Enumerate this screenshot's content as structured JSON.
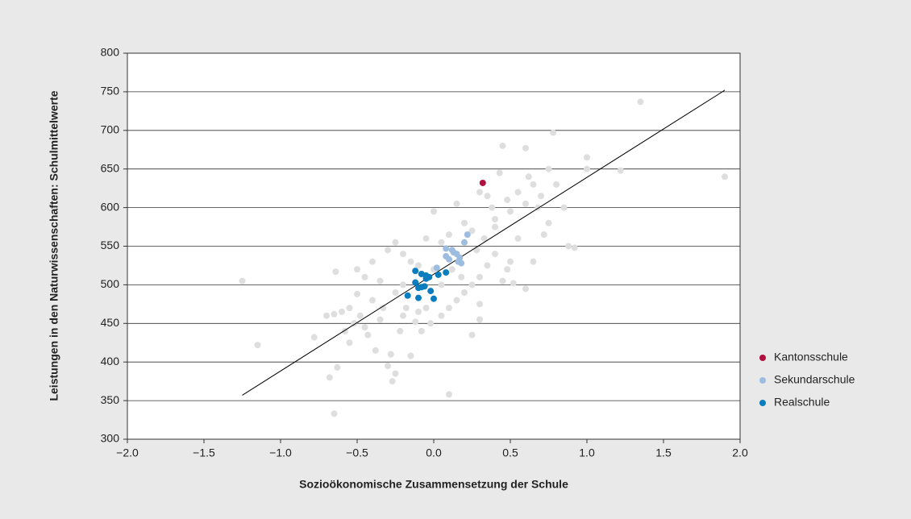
{
  "chart_data": {
    "type": "scatter",
    "xlabel": "Sozioökonomische Zusammensetzung der Schule",
    "ylabel": "Leistungen in den Naturwissenschaften: Schulmittelwerte",
    "xlim": [
      -2,
      2
    ],
    "xticks": [
      {
        "value": -2,
        "label": "−2.0"
      },
      {
        "value": -1.5,
        "label": "−1.5"
      },
      {
        "value": -1,
        "label": "−1.0"
      },
      {
        "value": -0.5,
        "label": "−0.5"
      },
      {
        "value": 0,
        "label": "0.0"
      },
      {
        "value": 0.5,
        "label": "0.5"
      },
      {
        "value": 1,
        "label": "1.0"
      },
      {
        "value": 1.5,
        "label": "1.5"
      },
      {
        "value": 2,
        "label": "2.0"
      }
    ],
    "ylim": [
      300,
      800
    ],
    "yticks": [
      300,
      350,
      400,
      450,
      500,
      550,
      600,
      650,
      700,
      750,
      800
    ],
    "grid": true,
    "legend": "right",
    "trend_line": {
      "color": "#000000",
      "x": [
        -1.25,
        1.9
      ],
      "y": [
        357,
        752
      ]
    },
    "series": [
      {
        "color": "#dedede",
        "x": [
          -1.25,
          -1.15,
          -0.78,
          -0.68,
          -0.65,
          -0.63,
          -0.65,
          -0.6,
          -0.58,
          -0.55,
          -0.52,
          -0.5,
          -0.48,
          -0.45,
          -0.43,
          -0.4,
          -0.38,
          -0.35,
          -0.33,
          -0.3,
          -0.28,
          -0.27,
          -0.25,
          -0.22,
          -0.2,
          -0.18,
          -0.15,
          -0.12,
          -0.1,
          -0.08,
          -0.05,
          -0.02,
          0.05,
          0.1,
          0.25,
          0.3,
          0.3,
          -0.64,
          -0.5,
          -0.35,
          -0.3,
          -0.25,
          -0.2,
          -0.15,
          -0.1,
          -0.05,
          0,
          0.05,
          0.1,
          0.15,
          0.2,
          0.25,
          0.3,
          0.35,
          0.38,
          0.4,
          0.43,
          0.45,
          0.48,
          0.5,
          0.55,
          0.6,
          0.62,
          0.65,
          0.68,
          0.7,
          0.75,
          0.78,
          0.8,
          0.85,
          0.88,
          0.92,
          1.0,
          1.0,
          1.22,
          1.35,
          1.9,
          0.75,
          0.72,
          0.6,
          0.55,
          0.5,
          0.48,
          0.45,
          0.4,
          0.35,
          0.3,
          0.25,
          0.2,
          0.15,
          0.1,
          0.05,
          0.0,
          0.28,
          0.33,
          0.4,
          0.52,
          0.65,
          0.6,
          -0.4,
          -0.45,
          -0.55,
          -0.7,
          -0.25,
          -0.2,
          0.12,
          0.18
        ],
        "values": [
          505,
          422,
          432,
          380,
          333,
          393,
          462,
          465,
          440,
          425,
          450,
          488,
          460,
          445,
          435,
          480,
          415,
          455,
          470,
          395,
          410,
          375,
          385,
          440,
          460,
          470,
          408,
          452,
          465,
          440,
          470,
          450,
          460,
          358,
          435,
          455,
          475,
          517,
          520,
          505,
          545,
          555,
          540,
          530,
          525,
          560,
          595,
          555,
          565,
          605,
          580,
          570,
          620,
          615,
          600,
          585,
          645,
          680,
          610,
          595,
          620,
          677,
          640,
          630,
          600,
          615,
          650,
          697,
          630,
          600,
          550,
          548,
          665,
          650,
          648,
          737,
          640,
          580,
          565,
          605,
          560,
          530,
          520,
          505,
          540,
          525,
          510,
          500,
          490,
          480,
          470,
          500,
          520,
          545,
          560,
          575,
          502,
          530,
          495,
          530,
          510,
          470,
          460,
          490,
          500,
          520,
          510
        ]
      },
      {
        "name": "Kantonsschule",
        "color": "#b0103f",
        "x": [
          0.32
        ],
        "values": [
          632
        ]
      },
      {
        "name": "Sekundarschule",
        "color": "#9dbde0",
        "x": [
          0.22,
          0.2,
          0.08,
          0.12,
          0.15,
          0.08,
          0.1,
          0.18,
          0.17,
          0.02,
          0.13,
          0.16
        ],
        "values": [
          565,
          555,
          547,
          545,
          540,
          537,
          533,
          528,
          535,
          522,
          542,
          530
        ]
      },
      {
        "name": "Realschule",
        "color": "#0a7dbf",
        "x": [
          -0.12,
          -0.08,
          -0.05,
          -0.03,
          0.03,
          0.08,
          -0.12,
          -0.08,
          -0.1,
          -0.06,
          -0.02,
          0,
          -0.1,
          -0.17,
          -0.05
        ],
        "values": [
          518,
          514,
          512,
          510,
          513,
          516,
          503,
          497,
          496,
          498,
          492,
          482,
          483,
          486,
          508
        ]
      }
    ]
  }
}
